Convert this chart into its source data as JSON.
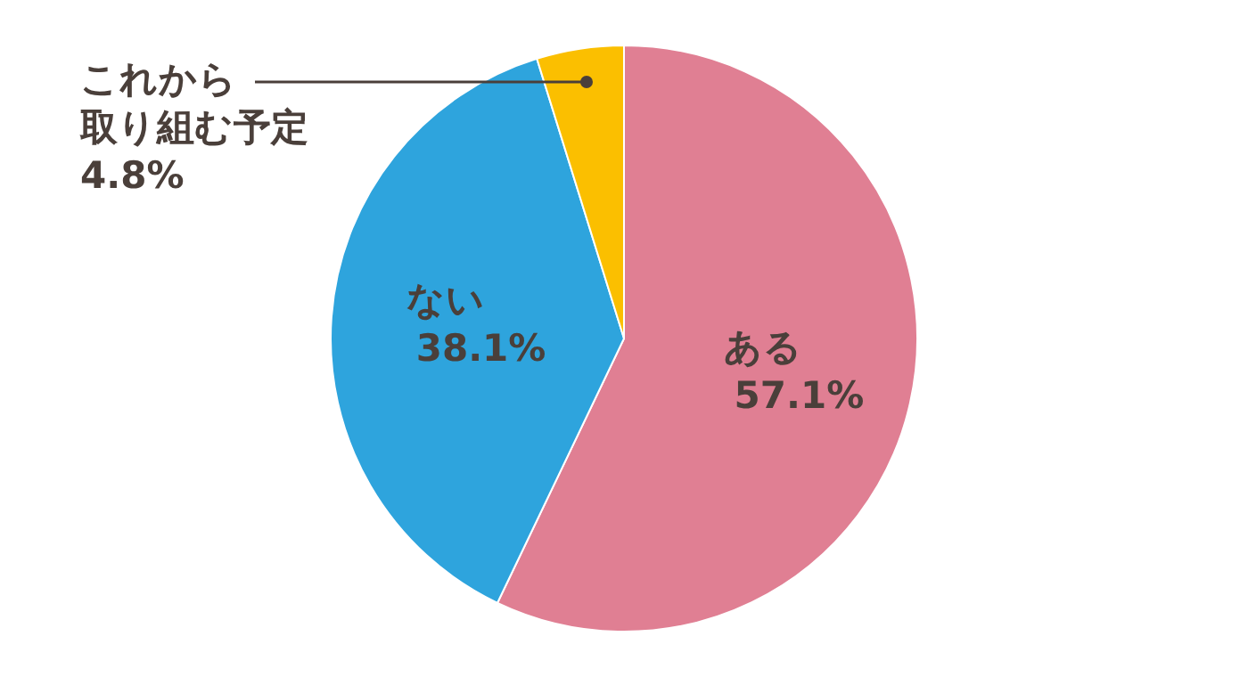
{
  "chart_data": {
    "type": "pie",
    "categories": [
      "ある",
      "ない",
      "これから取り組む予定"
    ],
    "values": [
      57.1,
      38.1,
      4.8
    ],
    "value_labels": [
      "57.1%",
      "38.1%",
      "4.8%"
    ],
    "colors": [
      "#e07f93",
      "#2ea4dd",
      "#fbbf00"
    ],
    "legend": false
  }
}
